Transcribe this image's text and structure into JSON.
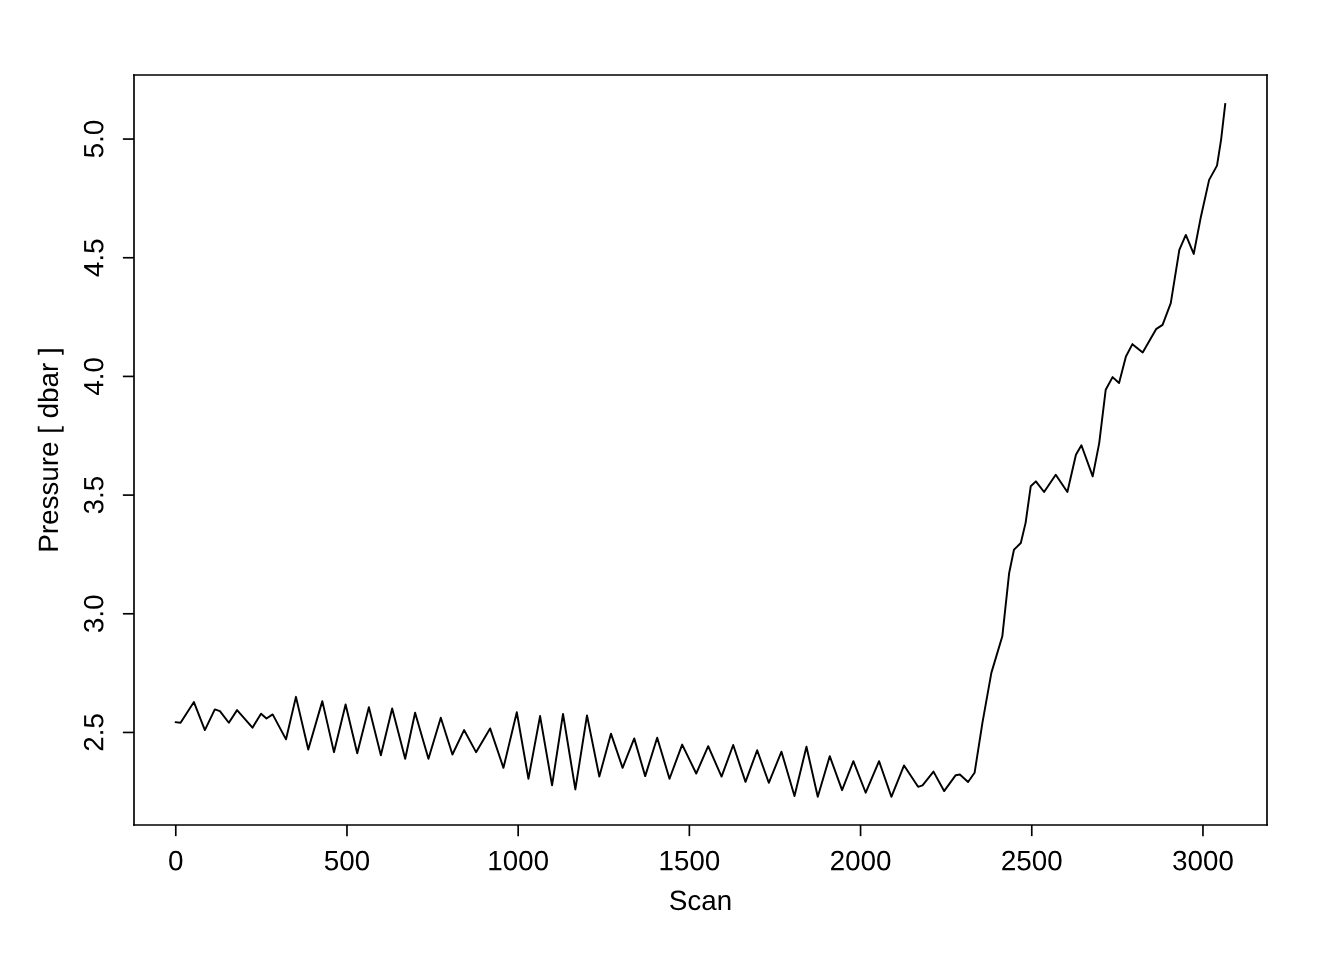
{
  "chart_data": {
    "type": "line",
    "xlabel": "Scan",
    "ylabel": "Pressure [ dbar ]",
    "xlim": [
      -122,
      3187
    ],
    "ylim": [
      2.11,
      5.27
    ],
    "xticks": [
      0,
      500,
      1000,
      1500,
      2000,
      2500,
      3000
    ],
    "yticks": [
      2.5,
      {
        "value": 3,
        "label": "3.0"
      },
      3.5,
      {
        "value": 4,
        "label": "4.0"
      },
      4.5,
      {
        "value": 5,
        "label": "5.0"
      }
    ],
    "grid": false,
    "legend": false,
    "marker": "none",
    "line_style": "solid",
    "x": [
      0,
      14,
      53,
      85,
      114,
      129,
      155,
      179,
      224,
      249,
      265,
      283,
      322,
      351,
      387,
      428,
      462,
      496,
      530,
      564,
      599,
      632,
      670,
      699,
      738,
      774,
      808,
      842,
      877,
      918,
      957,
      996,
      1030,
      1064,
      1099,
      1131,
      1167,
      1201,
      1237,
      1271,
      1305,
      1339,
      1371,
      1406,
      1442,
      1479,
      1520,
      1555,
      1594,
      1628,
      1664,
      1698,
      1732,
      1769,
      1807,
      1842,
      1875,
      1910,
      1946,
      1979,
      2015,
      2054,
      2090,
      2127,
      2168,
      2181,
      2213,
      2244,
      2278,
      2290,
      2314,
      2333,
      2356,
      2382,
      2414,
      2434,
      2448,
      2468,
      2482,
      2497,
      2512,
      2536,
      2570,
      2604,
      2629,
      2645,
      2678,
      2697,
      2716,
      2736,
      2755,
      2775,
      2794,
      2824,
      2863,
      2882,
      2906,
      2931,
      2950,
      2973,
      2994,
      3018,
      3041,
      3053,
      3065
    ],
    "series": [
      {
        "color": "#000000",
        "values": [
          2.543,
          2.541,
          2.628,
          2.51,
          2.597,
          2.59,
          2.541,
          2.594,
          2.52,
          2.579,
          2.559,
          2.576,
          2.471,
          2.65,
          2.428,
          2.632,
          2.417,
          2.618,
          2.412,
          2.606,
          2.404,
          2.601,
          2.389,
          2.583,
          2.389,
          2.562,
          2.407,
          2.51,
          2.417,
          2.517,
          2.351,
          2.585,
          2.305,
          2.569,
          2.277,
          2.578,
          2.26,
          2.572,
          2.314,
          2.495,
          2.351,
          2.475,
          2.316,
          2.478,
          2.305,
          2.449,
          2.327,
          2.442,
          2.314,
          2.447,
          2.292,
          2.425,
          2.288,
          2.419,
          2.232,
          2.44,
          2.229,
          2.4,
          2.257,
          2.379,
          2.246,
          2.379,
          2.229,
          2.361,
          2.271,
          2.277,
          2.335,
          2.253,
          2.32,
          2.323,
          2.291,
          2.33,
          2.541,
          2.751,
          2.905,
          3.172,
          3.27,
          3.298,
          3.383,
          3.537,
          3.558,
          3.513,
          3.586,
          3.513,
          3.67,
          3.71,
          3.579,
          3.719,
          3.944,
          3.997,
          3.972,
          4.084,
          4.136,
          4.101,
          4.199,
          4.217,
          4.309,
          4.533,
          4.596,
          4.516,
          4.673,
          4.828,
          4.888,
          4.998,
          5.147
        ]
      }
    ]
  }
}
